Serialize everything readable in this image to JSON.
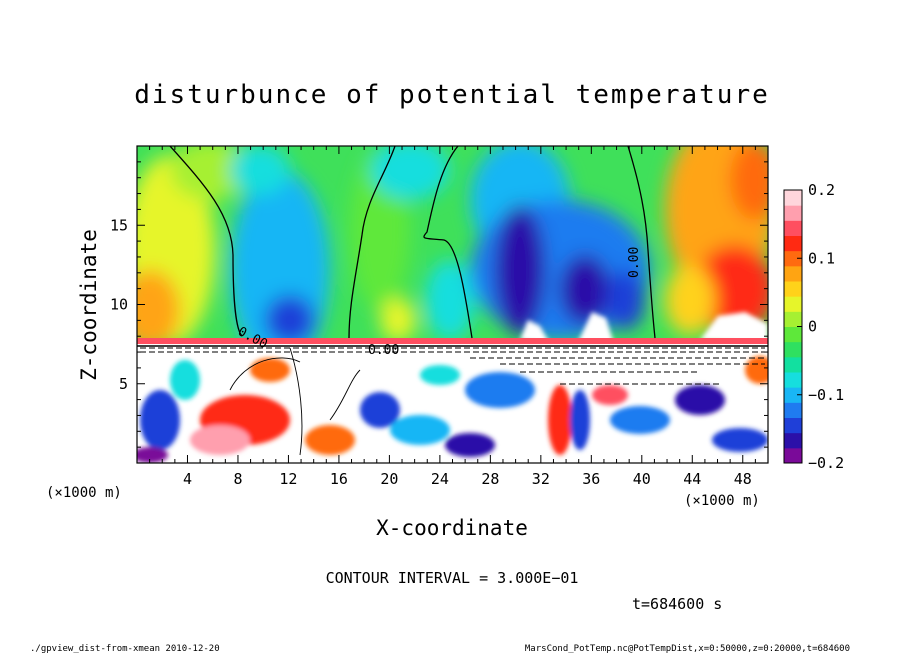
{
  "chart_data": {
    "type": "heatmap",
    "title": "disturbunce of potential temperature",
    "xlabel": "X-coordinate",
    "ylabel": "Z-coordinate",
    "x_unit_label": "(×1000 m)",
    "y_unit_label": "(×1000 m)",
    "x_ticks": [
      4,
      8,
      12,
      16,
      20,
      24,
      28,
      32,
      36,
      40,
      44,
      48
    ],
    "y_ticks": [
      5,
      10,
      15
    ],
    "xlim": [
      0,
      50
    ],
    "ylim": [
      0,
      20
    ],
    "colorbar": {
      "ticks": [
        {
          "value": 0.2,
          "label": "0.2"
        },
        {
          "value": 0.1,
          "label": "0.1"
        },
        {
          "value": 0.0,
          "label": "0"
        },
        {
          "value": -0.1,
          "label": "−0.1"
        },
        {
          "value": -0.2,
          "label": "−0.2"
        }
      ],
      "range": [
        -0.2,
        0.2
      ],
      "colors": [
        "#7a0a99",
        "#2b10a8",
        "#1f3fd8",
        "#1f7bf0",
        "#19b6f5",
        "#16dede",
        "#12e0a0",
        "#2fe060",
        "#5ee83a",
        "#a6f032",
        "#e6f52a",
        "#ffd21a",
        "#ffa412",
        "#ff6a10",
        "#ff2a12",
        "#ff4f60",
        "#ff9fae",
        "#ffd6dc"
      ]
    },
    "contour_labels": [
      "0.00",
      "0.00",
      "0.00"
    ],
    "contour_interval_text": "CONTOUR INTERVAL = 3.000E−01",
    "time_text": "t=684600 s"
  },
  "footer": {
    "left": "./gpview_dist-from-xmean  2010-12-20",
    "right": "MarsCond_PotTemp.nc@PotTempDist,x=0:50000,z=0:20000,t=684600"
  },
  "colors": {
    "blue_dark": "#2b10a8",
    "green": "#2fe060",
    "red": "#ff2a12"
  }
}
